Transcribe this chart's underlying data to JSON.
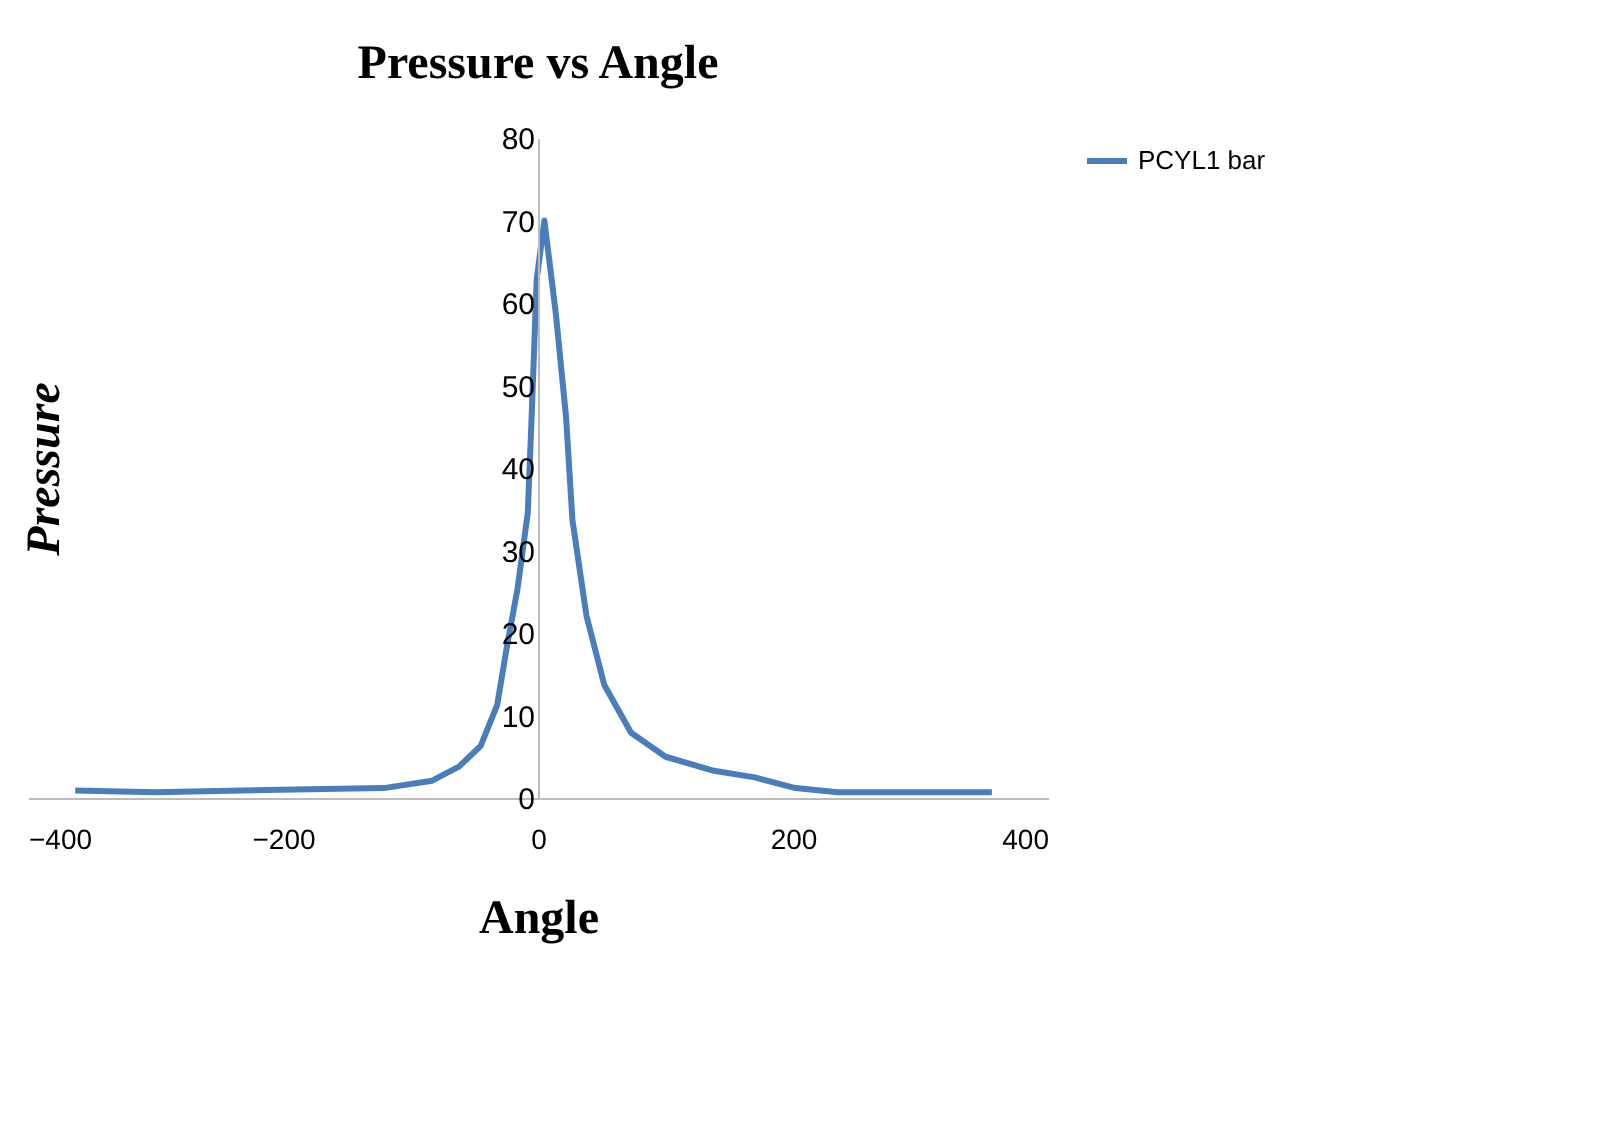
{
  "chart_data": {
    "type": "line",
    "title": "Pressure vs Angle",
    "xlabel": "Angle",
    "ylabel": "Pressure",
    "x": [
      -363,
      -300,
      -202,
      -121,
      -83,
      -62,
      -45,
      -32,
      -24,
      -16,
      -8,
      -5,
      -1,
      5,
      14,
      22,
      27,
      38,
      52,
      73,
      100,
      138,
      170,
      202,
      235,
      356
    ],
    "series": [
      {
        "name": "PCYL1 bar",
        "color": "#4a7ebb",
        "values": [
          0.9,
          0.7,
          1,
          1.2,
          2.1,
          3.8,
          6.3,
          11.3,
          18.7,
          25.4,
          34.6,
          46.2,
          62.9,
          70,
          58.7,
          46.2,
          33.7,
          22.1,
          13.7,
          7.9,
          5,
          3.3,
          2.5,
          1.2,
          0.7,
          0.7
        ]
      }
    ],
    "xlim": [
      -400,
      400
    ],
    "xticks": [
      -400,
      -200,
      0,
      200,
      400
    ],
    "ylim": [
      0,
      80
    ],
    "yticks": [
      0,
      10,
      20,
      30,
      40,
      50,
      60,
      70,
      80
    ],
    "grid": false,
    "legend": "right",
    "marker": "none",
    "line_style": "solid"
  }
}
